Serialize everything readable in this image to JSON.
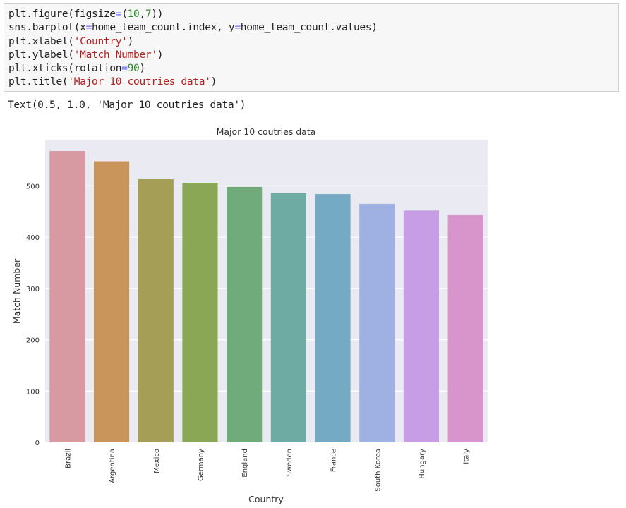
{
  "code_cell": {
    "lines": [
      [
        {
          "t": "plt.figure(figsize"
        },
        {
          "t": "=",
          "c": "op"
        },
        {
          "t": "("
        },
        {
          "t": "10",
          "c": "num"
        },
        {
          "t": ","
        },
        {
          "t": "7",
          "c": "num"
        },
        {
          "t": "))"
        }
      ],
      [
        {
          "t": "sns.barplot(x"
        },
        {
          "t": "=",
          "c": "op"
        },
        {
          "t": "home_team_count.index, y"
        },
        {
          "t": "=",
          "c": "op"
        },
        {
          "t": "home_team_count.values)"
        }
      ],
      [
        {
          "t": "plt.xlabel("
        },
        {
          "t": "'Country'",
          "c": "str"
        },
        {
          "t": ")"
        }
      ],
      [
        {
          "t": "plt.ylabel("
        },
        {
          "t": "'Match Number'",
          "c": "str"
        },
        {
          "t": ")"
        }
      ],
      [
        {
          "t": "plt.xticks(rotation"
        },
        {
          "t": "=",
          "c": "op"
        },
        {
          "t": "90",
          "c": "num"
        },
        {
          "t": ")"
        }
      ],
      [
        {
          "t": "plt.title("
        },
        {
          "t": "'Major 10 coutries data'",
          "c": "str"
        },
        {
          "t": ")"
        }
      ]
    ]
  },
  "output_text": "Text(0.5, 1.0, 'Major 10 coutries data')",
  "chart_data": {
    "type": "bar",
    "title": "Major 10 coutries data",
    "xlabel": "Country",
    "ylabel": "Match Number",
    "categories": [
      "Brazil",
      "Argentina",
      "Mexico",
      "Germany",
      "England",
      "Sweden",
      "France",
      "South Korea",
      "Hungary",
      "Italy"
    ],
    "values": [
      568,
      548,
      513,
      506,
      498,
      486,
      484,
      465,
      452,
      443
    ],
    "colors": [
      "#d89aa2",
      "#c9955a",
      "#a59e57",
      "#8aa756",
      "#70ab7b",
      "#6eaba3",
      "#74aac4",
      "#9fb0e2",
      "#c79de6",
      "#d795cb"
    ],
    "ylim": [
      0,
      590
    ],
    "yticks": [
      0,
      100,
      200,
      300,
      400,
      500
    ],
    "xtick_rotation": 90,
    "grid": true,
    "style": "seaborn-darkgrid",
    "background": "#eaeaf2"
  }
}
